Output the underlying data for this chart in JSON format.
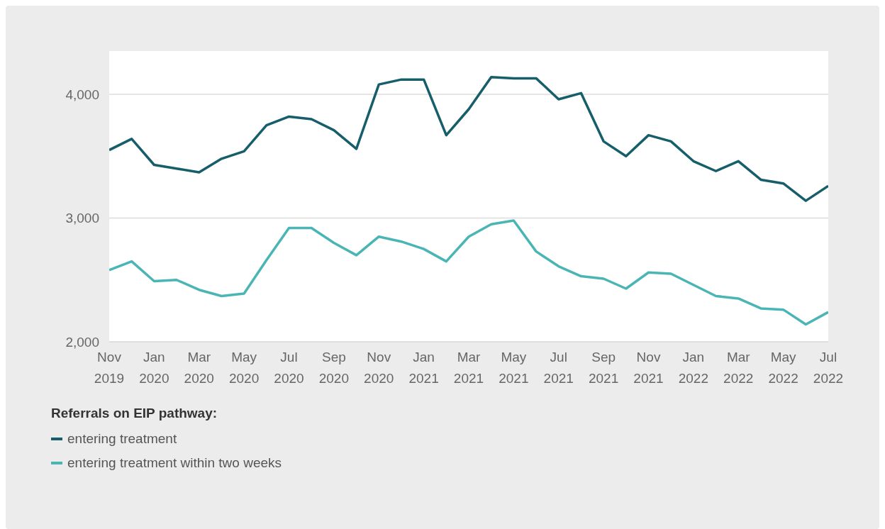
{
  "chart_data": {
    "type": "line",
    "legend_title": "Referrals on EIP pathway:",
    "legend": "bottom",
    "grid": "y",
    "marker": "none",
    "line_style": "solid",
    "x": [
      "2019-11",
      "2019-12",
      "2020-01",
      "2020-02",
      "2020-03",
      "2020-04",
      "2020-05",
      "2020-06",
      "2020-07",
      "2020-08",
      "2020-09",
      "2020-10",
      "2020-11",
      "2020-12",
      "2021-01",
      "2021-02",
      "2021-03",
      "2021-04",
      "2021-05",
      "2021-06",
      "2021-07",
      "2021-08",
      "2021-09",
      "2021-10",
      "2021-11",
      "2021-12",
      "2022-01",
      "2022-02",
      "2022-03",
      "2022-04",
      "2022-05",
      "2022-06",
      "2022-07"
    ],
    "xlim": [
      "2019-11",
      "2022-07"
    ],
    "xticks": [
      {
        "value": "2019-11",
        "label": "Nov 2019"
      },
      {
        "value": "2020-01",
        "label": "Jan 2020"
      },
      {
        "value": "2020-03",
        "label": "Mar 2020"
      },
      {
        "value": "2020-05",
        "label": "May 2020"
      },
      {
        "value": "2020-07",
        "label": "Jul 2020"
      },
      {
        "value": "2020-09",
        "label": "Sep 2020"
      },
      {
        "value": "2020-11",
        "label": "Nov 2020"
      },
      {
        "value": "2021-01",
        "label": "Jan 2021"
      },
      {
        "value": "2021-03",
        "label": "Mar 2021"
      },
      {
        "value": "2021-05",
        "label": "May 2021"
      },
      {
        "value": "2021-07",
        "label": "Jul 2021"
      },
      {
        "value": "2021-09",
        "label": "Sep 2021"
      },
      {
        "value": "2021-11",
        "label": "Nov 2021"
      },
      {
        "value": "2022-01",
        "label": "Jan 2022"
      },
      {
        "value": "2022-03",
        "label": "Mar 2022"
      },
      {
        "value": "2022-05",
        "label": "May 2022"
      },
      {
        "value": "2022-07",
        "label": "Jul 2022"
      }
    ],
    "ylim": [
      2000,
      4350
    ],
    "yticks": [
      {
        "value": 2000,
        "label": "2,000"
      },
      {
        "value": 3000,
        "label": "3,000"
      },
      {
        "value": 4000,
        "label": "4,000"
      }
    ],
    "series": [
      {
        "name": "entering treatment",
        "color": "#155e6a",
        "values": [
          3550,
          3640,
          3430,
          3400,
          3370,
          3480,
          3540,
          3750,
          3820,
          3800,
          3710,
          3560,
          4080,
          4120,
          4120,
          3670,
          3880,
          4140,
          4130,
          4130,
          3960,
          4010,
          3620,
          3500,
          3670,
          3620,
          3460,
          3380,
          3460,
          3310,
          3280,
          3140,
          3260
        ]
      },
      {
        "name": "entering treatment within two weeks",
        "color": "#4ab5b5",
        "values": [
          2580,
          2650,
          2490,
          2500,
          2420,
          2370,
          2390,
          2660,
          2920,
          2920,
          2800,
          2700,
          2850,
          2810,
          2750,
          2650,
          2850,
          2950,
          2980,
          2730,
          2610,
          2530,
          2510,
          2430,
          2560,
          2550,
          2460,
          2370,
          2350,
          2270,
          2260,
          2140,
          2240
        ]
      }
    ]
  }
}
